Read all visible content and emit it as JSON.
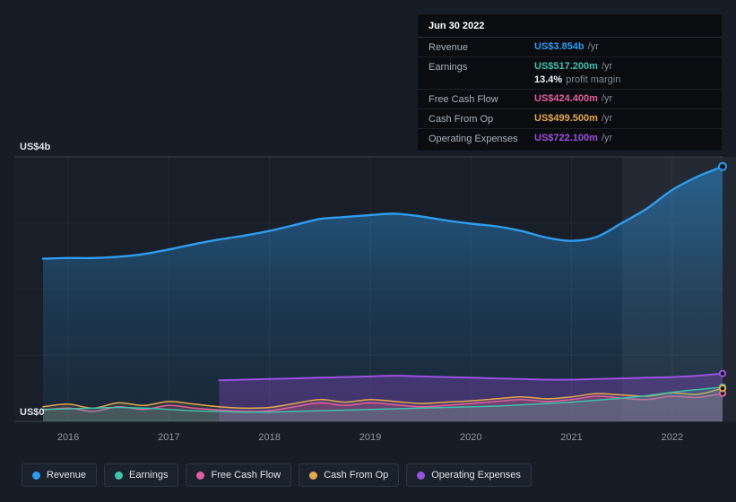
{
  "tooltip": {
    "date": "Jun 30 2022",
    "rows": [
      {
        "label": "Revenue",
        "value": "US$3.854b",
        "suffix": "/yr",
        "color": "#2f9ced"
      },
      {
        "label": "Earnings",
        "value": "US$517.200m",
        "suffix": "/yr",
        "color": "#41c0ad",
        "margin_value": "13.4%",
        "margin_label": "profit margin"
      },
      {
        "label": "Free Cash Flow",
        "value": "US$424.400m",
        "suffix": "/yr",
        "color": "#e0609e"
      },
      {
        "label": "Cash From Op",
        "value": "US$499.500m",
        "suffix": "/yr",
        "color": "#e3a852"
      },
      {
        "label": "Operating Expenses",
        "value": "US$722.100m",
        "suffix": "/yr",
        "color": "#9b51e0"
      }
    ]
  },
  "axis": {
    "y_top_label": "US$4b",
    "y_bottom_label": "US$0",
    "x_ticks": [
      "2016",
      "2017",
      "2018",
      "2019",
      "2020",
      "2021",
      "2022"
    ]
  },
  "legend": [
    {
      "label": "Revenue",
      "color": "#2f9ced"
    },
    {
      "label": "Earnings",
      "color": "#41c0ad"
    },
    {
      "label": "Free Cash Flow",
      "color": "#e0609e"
    },
    {
      "label": "Cash From Op",
      "color": "#e3a852"
    },
    {
      "label": "Operating Expenses",
      "color": "#9b51e0"
    }
  ],
  "chart_data": {
    "type": "area",
    "x_unit": "calendar year (fractional quarters)",
    "x_range": [
      2015.75,
      2022.5
    ],
    "ylim": [
      0,
      4
    ],
    "y_unit": "US$ billions",
    "x_tick_years": [
      2016,
      2017,
      2018,
      2019,
      2020,
      2021,
      2022
    ],
    "highlight_band_from_x": 2021.5,
    "grid": "solid top and bottom rules, faint interior horizontal and vertical year lines",
    "legend_position": "bottom-left",
    "draw_order": [
      0,
      4,
      3,
      2,
      1
    ],
    "series": [
      {
        "name": "Revenue",
        "color": "#2f9ced",
        "line_width": 2.4,
        "area": "gradient",
        "points": [
          [
            2015.75,
            2.46
          ],
          [
            2016.0,
            2.47
          ],
          [
            2016.25,
            2.47
          ],
          [
            2016.5,
            2.49
          ],
          [
            2016.75,
            2.53
          ],
          [
            2017.0,
            2.6
          ],
          [
            2017.25,
            2.68
          ],
          [
            2017.5,
            2.75
          ],
          [
            2017.75,
            2.81
          ],
          [
            2018.0,
            2.88
          ],
          [
            2018.25,
            2.97
          ],
          [
            2018.5,
            3.06
          ],
          [
            2018.75,
            3.09
          ],
          [
            2019.0,
            3.12
          ],
          [
            2019.25,
            3.14
          ],
          [
            2019.5,
            3.1
          ],
          [
            2019.75,
            3.04
          ],
          [
            2020.0,
            2.99
          ],
          [
            2020.25,
            2.95
          ],
          [
            2020.5,
            2.88
          ],
          [
            2020.75,
            2.78
          ],
          [
            2021.0,
            2.73
          ],
          [
            2021.25,
            2.79
          ],
          [
            2021.5,
            3.0
          ],
          [
            2021.75,
            3.22
          ],
          [
            2022.0,
            3.5
          ],
          [
            2022.25,
            3.7
          ],
          [
            2022.5,
            3.854
          ]
        ]
      },
      {
        "name": "Earnings",
        "color": "#41c0ad",
        "line_width": 1.5,
        "area_alpha": 0.22,
        "points": [
          [
            2015.75,
            0.18
          ],
          [
            2016.0,
            0.19
          ],
          [
            2016.25,
            0.2
          ],
          [
            2016.5,
            0.21
          ],
          [
            2016.75,
            0.2
          ],
          [
            2017.0,
            0.18
          ],
          [
            2017.25,
            0.16
          ],
          [
            2017.5,
            0.15
          ],
          [
            2017.75,
            0.14
          ],
          [
            2018.0,
            0.14
          ],
          [
            2018.25,
            0.15
          ],
          [
            2018.5,
            0.16
          ],
          [
            2018.75,
            0.17
          ],
          [
            2019.0,
            0.18
          ],
          [
            2019.25,
            0.19
          ],
          [
            2019.5,
            0.2
          ],
          [
            2019.75,
            0.21
          ],
          [
            2020.0,
            0.22
          ],
          [
            2020.25,
            0.23
          ],
          [
            2020.5,
            0.25
          ],
          [
            2020.75,
            0.27
          ],
          [
            2021.0,
            0.29
          ],
          [
            2021.25,
            0.32
          ],
          [
            2021.5,
            0.35
          ],
          [
            2021.75,
            0.39
          ],
          [
            2022.0,
            0.44
          ],
          [
            2022.25,
            0.48
          ],
          [
            2022.5,
            0.5172
          ]
        ]
      },
      {
        "name": "Free Cash Flow",
        "color": "#e0609e",
        "line_width": 1.5,
        "area_alpha": 0.14,
        "points": [
          [
            2015.75,
            0.17
          ],
          [
            2016.0,
            0.2
          ],
          [
            2016.25,
            0.15
          ],
          [
            2016.5,
            0.22
          ],
          [
            2016.75,
            0.18
          ],
          [
            2017.0,
            0.24
          ],
          [
            2017.25,
            0.2
          ],
          [
            2017.5,
            0.17
          ],
          [
            2017.75,
            0.15
          ],
          [
            2018.0,
            0.16
          ],
          [
            2018.25,
            0.22
          ],
          [
            2018.5,
            0.28
          ],
          [
            2018.75,
            0.24
          ],
          [
            2019.0,
            0.28
          ],
          [
            2019.25,
            0.25
          ],
          [
            2019.5,
            0.22
          ],
          [
            2019.75,
            0.24
          ],
          [
            2020.0,
            0.27
          ],
          [
            2020.25,
            0.3
          ],
          [
            2020.5,
            0.33
          ],
          [
            2020.75,
            0.3
          ],
          [
            2021.0,
            0.33
          ],
          [
            2021.25,
            0.38
          ],
          [
            2021.5,
            0.35
          ],
          [
            2021.75,
            0.33
          ],
          [
            2022.0,
            0.38
          ],
          [
            2022.25,
            0.36
          ],
          [
            2022.5,
            0.4244
          ]
        ]
      },
      {
        "name": "Cash From Op",
        "color": "#e3a852",
        "line_width": 1.5,
        "area_alpha": 0.12,
        "points": [
          [
            2015.75,
            0.22
          ],
          [
            2016.0,
            0.26
          ],
          [
            2016.25,
            0.2
          ],
          [
            2016.5,
            0.28
          ],
          [
            2016.75,
            0.24
          ],
          [
            2017.0,
            0.3
          ],
          [
            2017.25,
            0.26
          ],
          [
            2017.5,
            0.22
          ],
          [
            2017.75,
            0.2
          ],
          [
            2018.0,
            0.21
          ],
          [
            2018.25,
            0.27
          ],
          [
            2018.5,
            0.33
          ],
          [
            2018.75,
            0.29
          ],
          [
            2019.0,
            0.33
          ],
          [
            2019.25,
            0.3
          ],
          [
            2019.5,
            0.27
          ],
          [
            2019.75,
            0.29
          ],
          [
            2020.0,
            0.31
          ],
          [
            2020.25,
            0.34
          ],
          [
            2020.5,
            0.37
          ],
          [
            2020.75,
            0.34
          ],
          [
            2021.0,
            0.37
          ],
          [
            2021.25,
            0.42
          ],
          [
            2021.5,
            0.4
          ],
          [
            2021.75,
            0.38
          ],
          [
            2022.0,
            0.43
          ],
          [
            2022.25,
            0.41
          ],
          [
            2022.5,
            0.4995
          ]
        ]
      },
      {
        "name": "Operating Expenses",
        "color": "#9b51e0",
        "line_width": 2,
        "area_alpha": 0.3,
        "points": [
          [
            2017.5,
            0.62
          ],
          [
            2017.75,
            0.63
          ],
          [
            2018.0,
            0.64
          ],
          [
            2018.25,
            0.65
          ],
          [
            2018.5,
            0.66
          ],
          [
            2018.75,
            0.67
          ],
          [
            2019.0,
            0.68
          ],
          [
            2019.25,
            0.69
          ],
          [
            2019.5,
            0.68
          ],
          [
            2019.75,
            0.67
          ],
          [
            2020.0,
            0.66
          ],
          [
            2020.25,
            0.65
          ],
          [
            2020.5,
            0.64
          ],
          [
            2020.75,
            0.63
          ],
          [
            2021.0,
            0.63
          ],
          [
            2021.25,
            0.64
          ],
          [
            2021.5,
            0.65
          ],
          [
            2021.75,
            0.66
          ],
          [
            2022.0,
            0.67
          ],
          [
            2022.25,
            0.69
          ],
          [
            2022.5,
            0.7221
          ]
        ]
      }
    ]
  }
}
